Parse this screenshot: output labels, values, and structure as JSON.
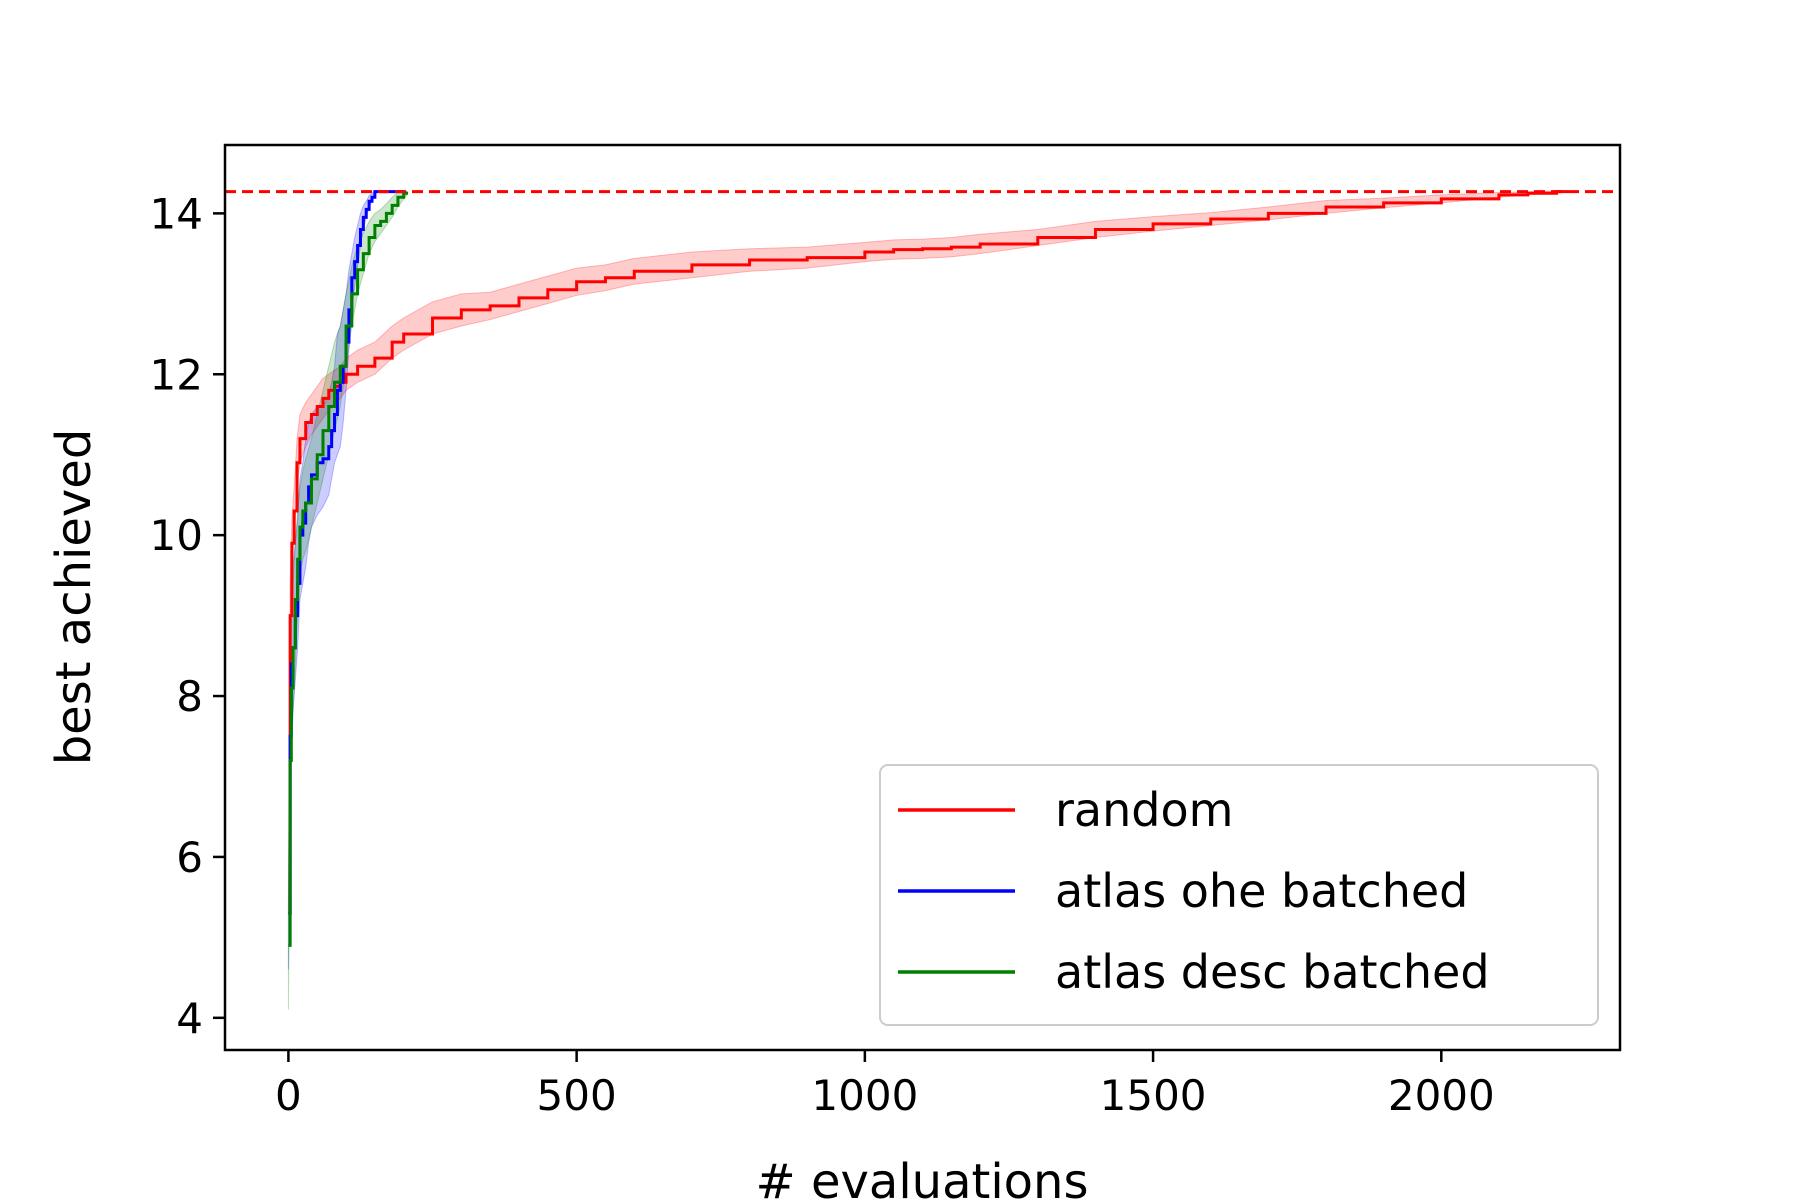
{
  "chart_data": {
    "type": "line",
    "title": "",
    "xlabel": "# evaluations",
    "ylabel": "best achieved",
    "xlim": [
      -110,
      2310
    ],
    "ylim": [
      3.6,
      14.85
    ],
    "xticks": [
      0,
      500,
      1000,
      1500,
      2000
    ],
    "yticks": [
      4,
      6,
      8,
      10,
      12,
      14
    ],
    "grid": false,
    "legend_position": "lower-right",
    "reference_line": {
      "y": 14.27,
      "color": "#ff0000",
      "style": "dashed"
    },
    "series": [
      {
        "name": "random",
        "color": "#ff0000",
        "x": [
          0,
          3,
          6,
          10,
          15,
          20,
          30,
          40,
          50,
          60,
          70,
          80,
          90,
          100,
          120,
          150,
          180,
          200,
          250,
          300,
          350,
          400,
          450,
          500,
          550,
          600,
          700,
          800,
          900,
          1000,
          1050,
          1100,
          1150,
          1200,
          1300,
          1400,
          1500,
          1600,
          1700,
          1800,
          1900,
          2000,
          2100,
          2150,
          2200,
          2220
        ],
        "y": [
          5.3,
          9.0,
          9.9,
          10.3,
          10.9,
          11.2,
          11.4,
          11.5,
          11.6,
          11.7,
          11.8,
          11.85,
          11.9,
          12.0,
          12.1,
          12.2,
          12.4,
          12.5,
          12.7,
          12.8,
          12.85,
          12.95,
          13.05,
          13.15,
          13.2,
          13.28,
          13.36,
          13.42,
          13.45,
          13.52,
          13.55,
          13.56,
          13.58,
          13.62,
          13.7,
          13.8,
          13.87,
          13.93,
          14.0,
          14.08,
          14.13,
          14.18,
          14.23,
          14.25,
          14.27,
          14.27
        ],
        "lower": [
          5.3,
          8.6,
          9.6,
          10.0,
          10.6,
          10.9,
          11.1,
          11.25,
          11.35,
          11.45,
          11.55,
          11.62,
          11.7,
          11.8,
          11.9,
          12.0,
          12.2,
          12.3,
          12.5,
          12.6,
          12.68,
          12.78,
          12.88,
          12.98,
          13.04,
          13.12,
          13.2,
          13.28,
          13.32,
          13.4,
          13.43,
          13.44,
          13.46,
          13.5,
          13.6,
          13.7,
          13.78,
          13.85,
          13.92,
          14.0,
          14.07,
          14.13,
          14.2,
          14.23,
          14.26,
          14.27
        ],
        "upper": [
          5.3,
          9.4,
          10.2,
          10.6,
          11.2,
          11.5,
          11.65,
          11.75,
          11.85,
          11.95,
          12.0,
          12.05,
          12.1,
          12.2,
          12.3,
          12.4,
          12.6,
          12.7,
          12.9,
          13.0,
          13.02,
          13.12,
          13.22,
          13.32,
          13.36,
          13.44,
          13.52,
          13.56,
          13.58,
          13.64,
          13.67,
          13.68,
          13.7,
          13.74,
          13.8,
          13.9,
          13.96,
          14.01,
          14.08,
          14.16,
          14.19,
          14.23,
          14.26,
          14.27,
          14.28,
          14.27
        ]
      },
      {
        "name": "atlas ohe batched",
        "color": "#0000ff",
        "x": [
          0,
          3,
          5,
          8,
          12,
          16,
          20,
          25,
          30,
          35,
          40,
          50,
          60,
          70,
          75,
          80,
          85,
          90,
          95,
          100,
          105,
          110,
          115,
          120,
          125,
          130,
          135,
          140,
          145,
          150,
          155,
          160,
          170,
          180,
          190,
          200
        ],
        "y": [
          5.3,
          7.5,
          8.4,
          8.6,
          9.0,
          9.4,
          10.0,
          10.15,
          10.4,
          10.6,
          10.75,
          10.9,
          10.95,
          11.1,
          11.3,
          11.5,
          11.8,
          11.9,
          12.1,
          12.4,
          12.8,
          13.2,
          13.4,
          13.6,
          13.8,
          13.95,
          14.05,
          14.15,
          14.2,
          14.27,
          14.27,
          14.27,
          14.27,
          14.27,
          14.27,
          14.27
        ],
        "lower": [
          4.6,
          6.8,
          7.4,
          7.8,
          8.2,
          8.6,
          9.2,
          9.4,
          9.6,
          9.9,
          10.1,
          10.25,
          10.35,
          10.5,
          10.7,
          10.9,
          11.0,
          11.1,
          11.4,
          11.8,
          12.3,
          12.8,
          13.1,
          13.35,
          13.6,
          13.8,
          13.95,
          14.08,
          14.15,
          14.25,
          14.27,
          14.27,
          14.27,
          14.27,
          14.27,
          14.27
        ],
        "upper": [
          5.3,
          8.3,
          9.3,
          9.6,
          9.9,
          10.2,
          10.7,
          10.9,
          11.2,
          11.4,
          11.5,
          11.6,
          11.6,
          11.75,
          11.9,
          12.1,
          12.5,
          12.6,
          12.8,
          13.0,
          13.3,
          13.5,
          13.7,
          13.85,
          14.0,
          14.1,
          14.15,
          14.22,
          14.25,
          14.28,
          14.28,
          14.28,
          14.27,
          14.27,
          14.27,
          14.27
        ]
      },
      {
        "name": "atlas desc batched",
        "color": "#008000",
        "x": [
          0,
          3,
          5,
          8,
          12,
          16,
          20,
          25,
          30,
          40,
          50,
          60,
          70,
          80,
          90,
          100,
          110,
          120,
          130,
          140,
          150,
          160,
          170,
          180,
          190,
          200,
          205
        ],
        "y": [
          4.9,
          7.2,
          8.1,
          8.6,
          9.2,
          9.7,
          10.1,
          10.3,
          10.4,
          10.7,
          11.0,
          11.3,
          11.6,
          11.9,
          12.1,
          12.6,
          13.0,
          13.3,
          13.5,
          13.7,
          13.85,
          13.9,
          14.0,
          14.1,
          14.2,
          14.25,
          14.27
        ],
        "lower": [
          4.1,
          6.4,
          7.3,
          7.8,
          8.4,
          9.0,
          9.5,
          9.7,
          9.8,
          10.1,
          10.4,
          10.7,
          11.0,
          11.3,
          11.6,
          12.1,
          12.6,
          13.0,
          13.25,
          13.5,
          13.65,
          13.75,
          13.85,
          13.95,
          14.08,
          14.18,
          14.22
        ],
        "upper": [
          5.5,
          8.0,
          8.9,
          9.4,
          9.9,
          10.3,
          10.6,
          10.8,
          10.95,
          11.2,
          11.5,
          11.8,
          12.1,
          12.4,
          12.6,
          13.0,
          13.35,
          13.6,
          13.75,
          13.9,
          14.0,
          14.05,
          14.12,
          14.2,
          14.26,
          14.28,
          14.28
        ]
      }
    ]
  }
}
